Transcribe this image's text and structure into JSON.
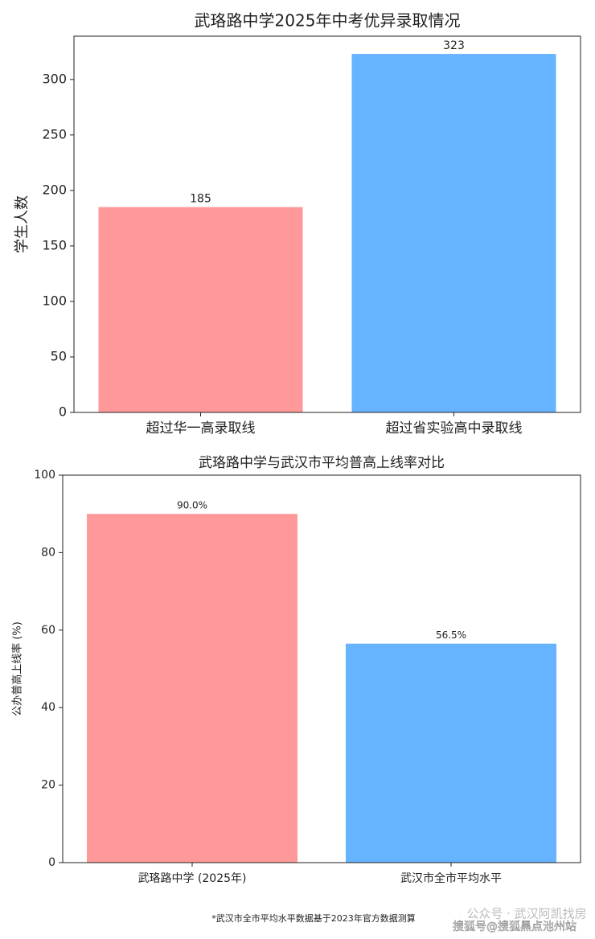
{
  "chart_data": [
    {
      "type": "bar",
      "title": "武珞路中学2025年中考优异录取情况",
      "y_label": "学生人数",
      "categories": [
        "超过华一高录取线",
        "超过省实验高中录取线"
      ],
      "values": [
        185,
        323
      ],
      "colors": [
        "#ff9999",
        "#66b3ff"
      ],
      "ylim": [
        0,
        339
      ],
      "yticks": [
        0,
        50,
        100,
        150,
        200,
        250,
        300
      ]
    },
    {
      "type": "bar",
      "title": "武珞路中学与武汉市平均普高上线率对比",
      "y_label": "公办普高上线率 (%)",
      "categories": [
        "武珞路中学 (2025年)",
        "武汉市全市平均水平"
      ],
      "values": [
        90.0,
        56.5
      ],
      "value_labels": [
        "90.0%",
        "56.5%"
      ],
      "colors": [
        "#ff9999",
        "#66b3ff"
      ],
      "ylim": [
        0,
        100
      ],
      "yticks": [
        0,
        20,
        40,
        60,
        80,
        100
      ]
    }
  ],
  "footnote": "*武汉市全市平均水平数据基于2023年官方数据测算",
  "watermark_1": "公众号 · 武汉阿凯找房",
  "watermark_2": "搜狐号@搜狐黑点池州站"
}
